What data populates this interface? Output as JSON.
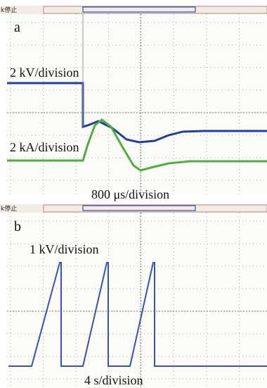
{
  "panels": [
    {
      "status": "k停止",
      "label": "a",
      "annotations": [
        "2 kV/division",
        "2 kA/division",
        "800 μs/division"
      ]
    },
    {
      "status": "k停止",
      "label": "b",
      "annotations": [
        "1 kV/division",
        "4 s/division"
      ]
    }
  ]
}
